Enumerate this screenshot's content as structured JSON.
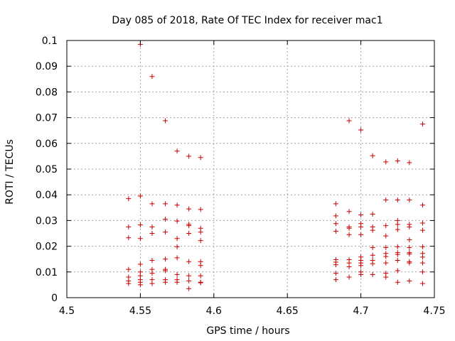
{
  "chart_data": {
    "type": "scatter",
    "title": "Day 085 of 2018, Rate Of TEC Index for receiver mac1",
    "xlabel": "GPS time / hours",
    "ylabel": "ROTI / TECUs",
    "xlim": [
      4.5,
      4.75
    ],
    "ylim": [
      0,
      0.1
    ],
    "xticks": [
      4.5,
      4.55,
      4.6,
      4.65,
      4.7,
      4.75
    ],
    "xtick_labels": [
      "4.5",
      "4.55",
      "4.6",
      "4.65",
      "4.7",
      "4.75"
    ],
    "yticks": [
      0,
      0.01,
      0.02,
      0.03,
      0.04,
      0.05,
      0.06,
      0.07,
      0.08,
      0.09,
      0.1
    ],
    "ytick_labels": [
      "0",
      "0.01",
      "0.02",
      "0.03",
      "0.04",
      "0.05",
      "0.06",
      "0.07",
      "0.08",
      "0.09",
      "0.1"
    ],
    "grid": true,
    "marker": "+",
    "color": "#cc0000",
    "series": [
      {
        "name": "mac1",
        "points": [
          [
            4.542,
            0.0385
          ],
          [
            4.542,
            0.0275
          ],
          [
            4.542,
            0.0233
          ],
          [
            4.542,
            0.011
          ],
          [
            4.542,
            0.008
          ],
          [
            4.542,
            0.0065
          ],
          [
            4.542,
            0.0055
          ],
          [
            4.55,
            0.0985
          ],
          [
            4.55,
            0.0395
          ],
          [
            4.55,
            0.0283
          ],
          [
            4.55,
            0.023
          ],
          [
            4.55,
            0.013
          ],
          [
            4.55,
            0.01
          ],
          [
            4.55,
            0.0085
          ],
          [
            4.55,
            0.007
          ],
          [
            4.55,
            0.006
          ],
          [
            4.55,
            0.005
          ],
          [
            4.558,
            0.086
          ],
          [
            4.558,
            0.0365
          ],
          [
            4.558,
            0.0275
          ],
          [
            4.558,
            0.025
          ],
          [
            4.558,
            0.0145
          ],
          [
            4.558,
            0.011
          ],
          [
            4.558,
            0.0095
          ],
          [
            4.558,
            0.007
          ],
          [
            4.558,
            0.0055
          ],
          [
            4.567,
            0.0688
          ],
          [
            4.567,
            0.0365
          ],
          [
            4.567,
            0.0305
          ],
          [
            4.567,
            0.0255
          ],
          [
            4.567,
            0.015
          ],
          [
            4.567,
            0.011
          ],
          [
            4.567,
            0.0105
          ],
          [
            4.567,
            0.007
          ],
          [
            4.567,
            0.006
          ],
          [
            4.575,
            0.057
          ],
          [
            4.575,
            0.036
          ],
          [
            4.575,
            0.0298
          ],
          [
            4.575,
            0.023
          ],
          [
            4.575,
            0.0198
          ],
          [
            4.575,
            0.0155
          ],
          [
            4.575,
            0.009
          ],
          [
            4.575,
            0.007
          ],
          [
            4.575,
            0.006
          ],
          [
            4.583,
            0.055
          ],
          [
            4.583,
            0.0345
          ],
          [
            4.583,
            0.0285
          ],
          [
            4.583,
            0.028
          ],
          [
            4.583,
            0.025
          ],
          [
            4.583,
            0.014
          ],
          [
            4.583,
            0.0085
          ],
          [
            4.583,
            0.0065
          ],
          [
            4.583,
            0.0035
          ],
          [
            4.591,
            0.0545
          ],
          [
            4.591,
            0.0343
          ],
          [
            4.591,
            0.027
          ],
          [
            4.591,
            0.0255
          ],
          [
            4.591,
            0.0222
          ],
          [
            4.591,
            0.014
          ],
          [
            4.591,
            0.0125
          ],
          [
            4.591,
            0.0085
          ],
          [
            4.591,
            0.006
          ],
          [
            4.591,
            0.0058
          ],
          [
            4.683,
            0.0365
          ],
          [
            4.683,
            0.0318
          ],
          [
            4.683,
            0.0288
          ],
          [
            4.683,
            0.0258
          ],
          [
            4.683,
            0.0148
          ],
          [
            4.683,
            0.0138
          ],
          [
            4.683,
            0.0128
          ],
          [
            4.683,
            0.0095
          ],
          [
            4.683,
            0.007
          ],
          [
            4.692,
            0.0688
          ],
          [
            4.692,
            0.0335
          ],
          [
            4.692,
            0.0275
          ],
          [
            4.692,
            0.027
          ],
          [
            4.692,
            0.0245
          ],
          [
            4.692,
            0.0148
          ],
          [
            4.692,
            0.0135
          ],
          [
            4.692,
            0.012
          ],
          [
            4.692,
            0.008
          ],
          [
            4.7,
            0.0652
          ],
          [
            4.7,
            0.0322
          ],
          [
            4.7,
            0.0288
          ],
          [
            4.7,
            0.0275
          ],
          [
            4.7,
            0.0245
          ],
          [
            4.7,
            0.0158
          ],
          [
            4.7,
            0.0145
          ],
          [
            4.7,
            0.0135
          ],
          [
            4.7,
            0.0125
          ],
          [
            4.7,
            0.01
          ],
          [
            4.7,
            0.009
          ],
          [
            4.708,
            0.0552
          ],
          [
            4.708,
            0.0325
          ],
          [
            4.708,
            0.0275
          ],
          [
            4.708,
            0.0262
          ],
          [
            4.708,
            0.0195
          ],
          [
            4.708,
            0.0165
          ],
          [
            4.708,
            0.0145
          ],
          [
            4.708,
            0.0132
          ],
          [
            4.708,
            0.009
          ],
          [
            4.717,
            0.0528
          ],
          [
            4.717,
            0.038
          ],
          [
            4.717,
            0.028
          ],
          [
            4.717,
            0.024
          ],
          [
            4.717,
            0.0195
          ],
          [
            4.717,
            0.0172
          ],
          [
            4.717,
            0.016
          ],
          [
            4.717,
            0.0135
          ],
          [
            4.717,
            0.0095
          ],
          [
            4.717,
            0.008
          ],
          [
            4.725,
            0.0532
          ],
          [
            4.725,
            0.038
          ],
          [
            4.725,
            0.03
          ],
          [
            4.725,
            0.0285
          ],
          [
            4.725,
            0.0265
          ],
          [
            4.725,
            0.0198
          ],
          [
            4.725,
            0.0175
          ],
          [
            4.725,
            0.0168
          ],
          [
            4.725,
            0.0145
          ],
          [
            4.725,
            0.0105
          ],
          [
            4.725,
            0.006
          ],
          [
            4.733,
            0.0525
          ],
          [
            4.733,
            0.038
          ],
          [
            4.733,
            0.0285
          ],
          [
            4.733,
            0.0275
          ],
          [
            4.733,
            0.0225
          ],
          [
            4.733,
            0.0195
          ],
          [
            4.733,
            0.0175
          ],
          [
            4.733,
            0.017
          ],
          [
            4.733,
            0.014
          ],
          [
            4.733,
            0.0135
          ],
          [
            4.733,
            0.0065
          ],
          [
            4.742,
            0.0675
          ],
          [
            4.742,
            0.036
          ],
          [
            4.742,
            0.029
          ],
          [
            4.742,
            0.0262
          ],
          [
            4.742,
            0.0198
          ],
          [
            4.742,
            0.0172
          ],
          [
            4.742,
            0.0158
          ],
          [
            4.742,
            0.0135
          ],
          [
            4.742,
            0.01
          ],
          [
            4.742,
            0.0055
          ]
        ]
      }
    ]
  }
}
